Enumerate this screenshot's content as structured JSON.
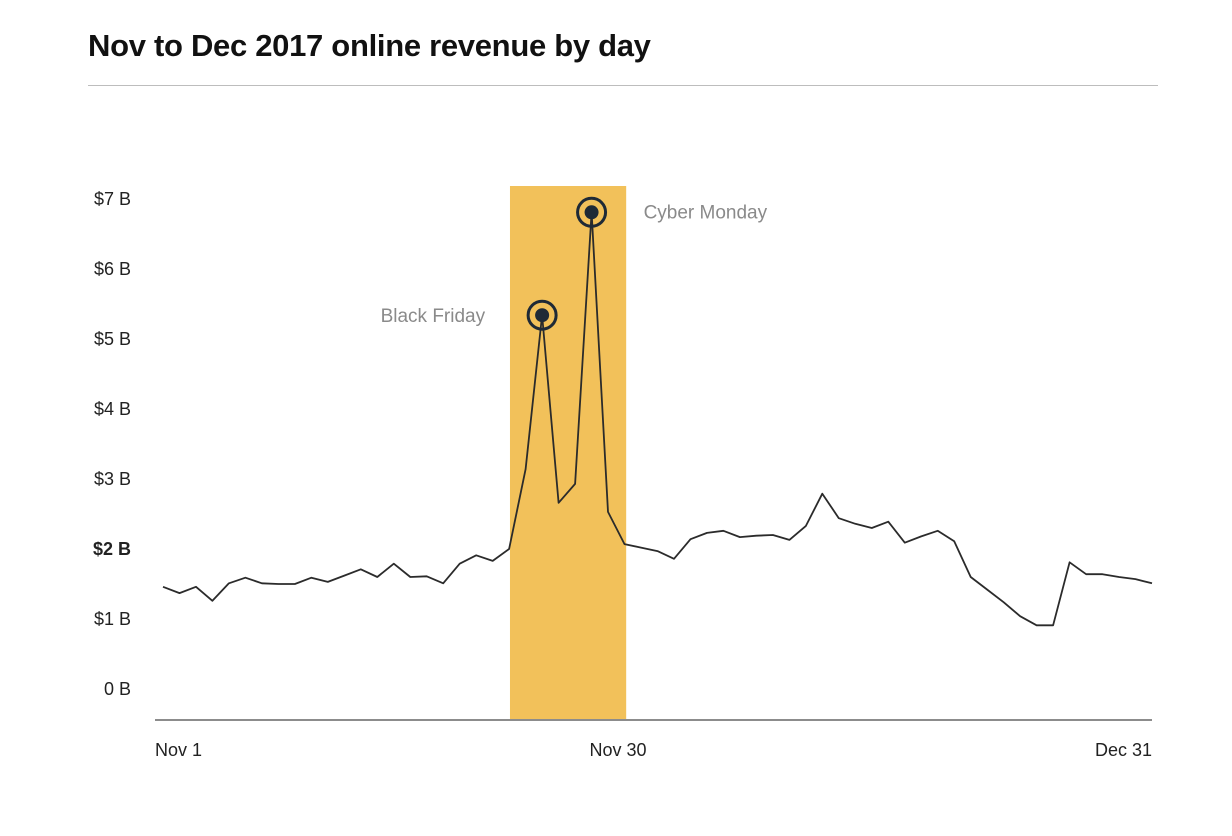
{
  "chart_data": {
    "type": "line",
    "title": "Nov to Dec 2017 online revenue by day",
    "xlabel": "",
    "ylabel": "",
    "ylim": [
      0,
      7
    ],
    "xlim": [
      1,
      61
    ],
    "y_ticks": [
      {
        "value": 0,
        "label": "0 B",
        "bold": false
      },
      {
        "value": 1,
        "label": "$1 B",
        "bold": false
      },
      {
        "value": 2,
        "label": "$2 B",
        "bold": true
      },
      {
        "value": 3,
        "label": "$3 B",
        "bold": false
      },
      {
        "value": 4,
        "label": "$4 B",
        "bold": false
      },
      {
        "value": 5,
        "label": "$5 B",
        "bold": false
      },
      {
        "value": 6,
        "label": "$6 B",
        "bold": false
      },
      {
        "value": 7,
        "label": "$7 B",
        "bold": false
      }
    ],
    "x_ticks": [
      {
        "day": 1,
        "label": "Nov 1",
        "anchor": "start"
      },
      {
        "day": 30,
        "label": "Nov 30",
        "anchor": "middle"
      },
      {
        "day": 61,
        "label": "Dec 31",
        "anchor": "end"
      }
    ],
    "highlight": {
      "from_day": 22.05,
      "to_day": 29.1,
      "color": "#f2c15a"
    },
    "line_color": "#2b2b2b",
    "marker_color": "#1f2a36",
    "series": [
      {
        "name": "Online revenue ($B)",
        "x": [
          1,
          2,
          3,
          4,
          5,
          6,
          7,
          8,
          9,
          10,
          11,
          12,
          13,
          14,
          15,
          16,
          17,
          18,
          19,
          20,
          21,
          22,
          23,
          24,
          25,
          26,
          27,
          28,
          29,
          30,
          31,
          32,
          33,
          34,
          35,
          36,
          37,
          38,
          39,
          40,
          41,
          42,
          43,
          44,
          45,
          46,
          47,
          48,
          49,
          50,
          51,
          52,
          53,
          54,
          55,
          56,
          57,
          58,
          59,
          60,
          61
        ],
        "values": [
          1.46,
          1.37,
          1.46,
          1.26,
          1.51,
          1.59,
          1.51,
          1.5,
          1.5,
          1.59,
          1.53,
          1.62,
          1.71,
          1.6,
          1.79,
          1.6,
          1.61,
          1.51,
          1.79,
          1.91,
          1.83,
          2.0,
          3.14,
          5.34,
          2.66,
          2.93,
          6.81,
          2.53,
          2.07,
          2.02,
          1.97,
          1.86,
          2.14,
          2.23,
          2.26,
          2.17,
          2.19,
          2.2,
          2.13,
          2.33,
          2.79,
          2.44,
          2.36,
          2.3,
          2.39,
          2.09,
          2.18,
          2.26,
          2.11,
          1.6,
          1.42,
          1.24,
          1.04,
          0.91,
          0.91,
          1.81,
          1.64,
          1.64,
          1.6,
          1.57,
          1.51
        ]
      }
    ],
    "annotations": [
      {
        "day": 24,
        "value": 5.34,
        "label": "Black Friday",
        "side": "left"
      },
      {
        "day": 27,
        "value": 6.81,
        "label": "Cyber Monday",
        "side": "right"
      }
    ],
    "grid": false,
    "legend": "none"
  }
}
